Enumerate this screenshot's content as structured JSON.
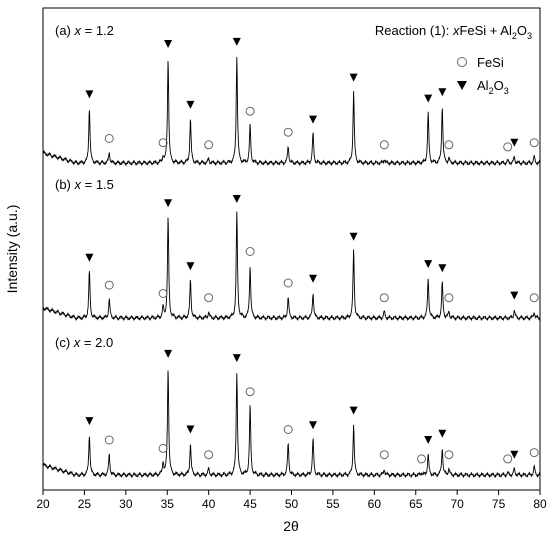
{
  "chart_data": {
    "type": "line",
    "title": "Reaction (1): xFeSi + Al₂O₃",
    "title_parts": [
      "Reaction (1): ",
      "x",
      "FeSi + Al",
      "2",
      "O",
      "3"
    ],
    "xlabel": "2θ",
    "ylabel": "Intensity (a.u.)",
    "xlim": [
      20,
      80
    ],
    "x_ticks": [
      20,
      25,
      30,
      35,
      40,
      45,
      50,
      55,
      60,
      65,
      70,
      75,
      80
    ],
    "y_ticks_shown": false,
    "grid": false,
    "legend_position": "top-right",
    "legend": [
      {
        "marker": "open-circle",
        "label": "FeSi",
        "label_parts": [
          "FeSi"
        ]
      },
      {
        "marker": "filled-down-triangle",
        "label": "Al₂O₃",
        "label_parts": [
          "Al",
          "2",
          "O",
          "3"
        ]
      }
    ],
    "series": [
      {
        "name": "(a) x = 1.2",
        "label_parts": [
          "(a) ",
          "x",
          " = 1.2"
        ],
        "peaks": [
          {
            "x": 25.6,
            "height": 0.26,
            "phase": "Al2O3"
          },
          {
            "x": 28.0,
            "height": 0.05,
            "phase": "FeSi"
          },
          {
            "x": 34.5,
            "height": 0.03,
            "phase": "FeSi"
          },
          {
            "x": 35.1,
            "height": 0.5,
            "phase": "Al2O3"
          },
          {
            "x": 37.8,
            "height": 0.21,
            "phase": "Al2O3"
          },
          {
            "x": 40.0,
            "height": 0.02,
            "phase": "FeSi"
          },
          {
            "x": 43.4,
            "height": 0.51,
            "phase": "Al2O3"
          },
          {
            "x": 45.0,
            "height": 0.18,
            "phase": "FeSi"
          },
          {
            "x": 49.6,
            "height": 0.08,
            "phase": "FeSi"
          },
          {
            "x": 52.6,
            "height": 0.14,
            "phase": "Al2O3"
          },
          {
            "x": 57.5,
            "height": 0.34,
            "phase": "Al2O3"
          },
          {
            "x": 61.2,
            "height": 0.02,
            "phase": "FeSi"
          },
          {
            "x": 66.5,
            "height": 0.24,
            "phase": "Al2O3"
          },
          {
            "x": 68.2,
            "height": 0.27,
            "phase": "Al2O3"
          },
          {
            "x": 69.0,
            "height": 0.02,
            "phase": "FeSi"
          },
          {
            "x": 76.1,
            "height": 0.01,
            "phase": "FeSi"
          },
          {
            "x": 76.9,
            "height": 0.03,
            "phase": "Al2O3"
          },
          {
            "x": 79.3,
            "height": 0.03,
            "phase": "FeSi"
          }
        ]
      },
      {
        "name": "(b) x = 1.5",
        "label_parts": [
          "(b) ",
          "x",
          " = 1.5"
        ],
        "peaks": [
          {
            "x": 25.6,
            "height": 0.22,
            "phase": "Al2O3"
          },
          {
            "x": 28.0,
            "height": 0.09,
            "phase": "FeSi"
          },
          {
            "x": 34.5,
            "height": 0.05,
            "phase": "FeSi"
          },
          {
            "x": 35.1,
            "height": 0.48,
            "phase": "Al2O3"
          },
          {
            "x": 37.8,
            "height": 0.18,
            "phase": "Al2O3"
          },
          {
            "x": 40.0,
            "height": 0.03,
            "phase": "FeSi"
          },
          {
            "x": 43.4,
            "height": 0.5,
            "phase": "Al2O3"
          },
          {
            "x": 45.0,
            "height": 0.25,
            "phase": "FeSi"
          },
          {
            "x": 49.6,
            "height": 0.1,
            "phase": "FeSi"
          },
          {
            "x": 52.6,
            "height": 0.12,
            "phase": "Al2O3"
          },
          {
            "x": 57.5,
            "height": 0.32,
            "phase": "Al2O3"
          },
          {
            "x": 61.2,
            "height": 0.03,
            "phase": "FeSi"
          },
          {
            "x": 66.5,
            "height": 0.19,
            "phase": "Al2O3"
          },
          {
            "x": 68.2,
            "height": 0.17,
            "phase": "Al2O3"
          },
          {
            "x": 69.0,
            "height": 0.03,
            "phase": "FeSi"
          },
          {
            "x": 76.9,
            "height": 0.04,
            "phase": "Al2O3"
          },
          {
            "x": 79.3,
            "height": 0.03,
            "phase": "FeSi"
          }
        ]
      },
      {
        "name": "(c) x = 2.0",
        "label_parts": [
          "(c) ",
          "x",
          " = 2.0"
        ],
        "peaks": [
          {
            "x": 25.6,
            "height": 0.19,
            "phase": "Al2O3"
          },
          {
            "x": 28.0,
            "height": 0.1,
            "phase": "FeSi"
          },
          {
            "x": 34.5,
            "height": 0.06,
            "phase": "FeSi"
          },
          {
            "x": 35.1,
            "height": 0.51,
            "phase": "Al2O3"
          },
          {
            "x": 37.8,
            "height": 0.15,
            "phase": "Al2O3"
          },
          {
            "x": 40.0,
            "height": 0.03,
            "phase": "FeSi"
          },
          {
            "x": 43.4,
            "height": 0.49,
            "phase": "Al2O3"
          },
          {
            "x": 45.0,
            "height": 0.33,
            "phase": "FeSi"
          },
          {
            "x": 49.6,
            "height": 0.15,
            "phase": "FeSi"
          },
          {
            "x": 52.6,
            "height": 0.17,
            "phase": "Al2O3"
          },
          {
            "x": 57.5,
            "height": 0.24,
            "phase": "Al2O3"
          },
          {
            "x": 61.2,
            "height": 0.03,
            "phase": "FeSi"
          },
          {
            "x": 65.7,
            "height": 0.01,
            "phase": "FeSi"
          },
          {
            "x": 66.5,
            "height": 0.1,
            "phase": "Al2O3"
          },
          {
            "x": 68.2,
            "height": 0.13,
            "phase": "Al2O3"
          },
          {
            "x": 69.0,
            "height": 0.03,
            "phase": "FeSi"
          },
          {
            "x": 76.1,
            "height": 0.01,
            "phase": "FeSi"
          },
          {
            "x": 76.9,
            "height": 0.03,
            "phase": "Al2O3"
          },
          {
            "x": 79.3,
            "height": 0.04,
            "phase": "FeSi"
          }
        ]
      }
    ]
  },
  "colors": {
    "line": "#000000",
    "background": "#ffffff"
  }
}
